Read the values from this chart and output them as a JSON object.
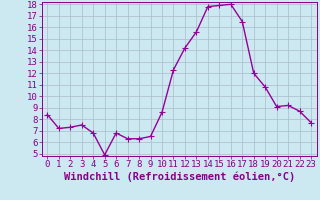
{
  "x": [
    0,
    1,
    2,
    3,
    4,
    5,
    6,
    7,
    8,
    9,
    10,
    11,
    12,
    13,
    14,
    15,
    16,
    17,
    18,
    19,
    20,
    21,
    22,
    23
  ],
  "y": [
    8.4,
    7.2,
    7.3,
    7.5,
    6.8,
    4.9,
    6.8,
    6.3,
    6.3,
    6.5,
    8.6,
    12.3,
    14.2,
    15.6,
    17.8,
    17.9,
    18.0,
    16.5,
    12.0,
    10.8,
    9.1,
    9.2,
    8.7,
    7.7
  ],
  "line_color": "#990099",
  "marker": "P",
  "marker_size": 2.5,
  "bg_color": "#cce8f0",
  "grid_color": "#aabbcc",
  "xlabel": "Windchill (Refroidissement éolien,°C)",
  "xlabel_color": "#880088",
  "tick_color": "#880088",
  "ylim": [
    5,
    18
  ],
  "xlim": [
    -0.5,
    23.5
  ],
  "yticks": [
    5,
    6,
    7,
    8,
    9,
    10,
    11,
    12,
    13,
    14,
    15,
    16,
    17,
    18
  ],
  "xticks": [
    0,
    1,
    2,
    3,
    4,
    5,
    6,
    7,
    8,
    9,
    10,
    11,
    12,
    13,
    14,
    15,
    16,
    17,
    18,
    19,
    20,
    21,
    22,
    23
  ],
  "linewidth": 1.0,
  "tick_fontsize": 6.5,
  "xlabel_fontsize": 7.5
}
